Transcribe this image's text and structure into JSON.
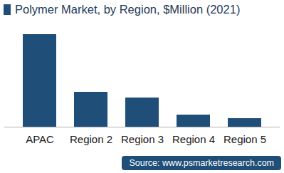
{
  "chart_data": {
    "type": "bar",
    "title": "Polymer Market, by Region, $Million (2021)",
    "categories": [
      "APAC",
      "Region 2",
      "Region 3",
      "Region 4",
      "Region 5"
    ],
    "values": [
      130,
      49,
      41,
      17,
      12
    ],
    "color": "#1f4e79",
    "ylim": [
      0,
      130
    ],
    "tick_labels": "x",
    "source": "Source: www.psmarketresearch.com"
  }
}
